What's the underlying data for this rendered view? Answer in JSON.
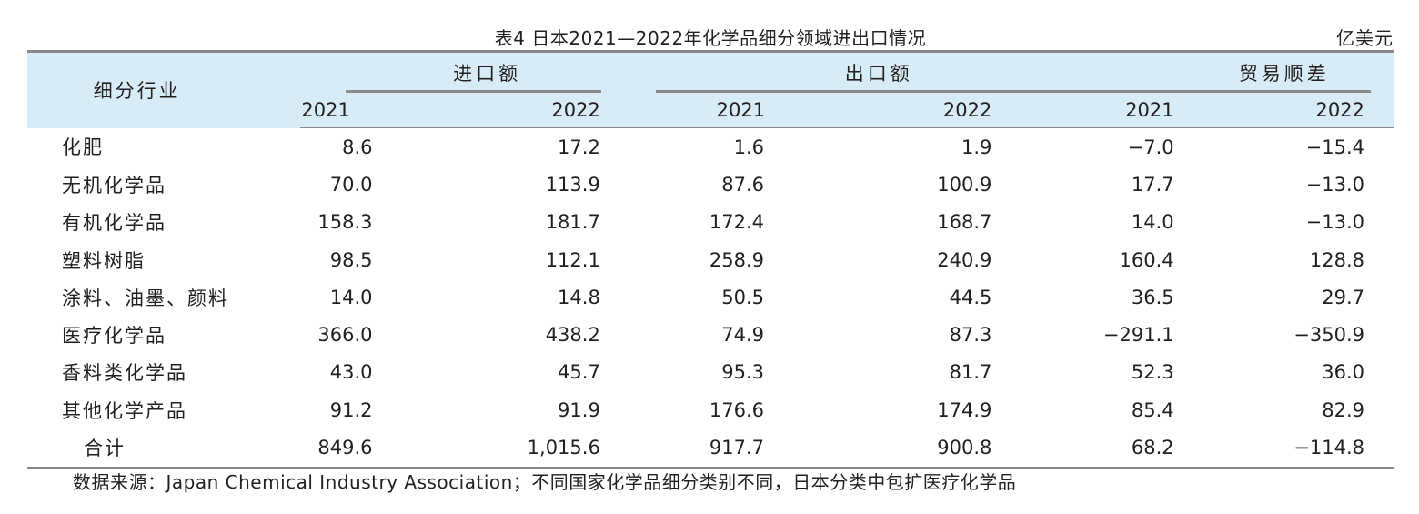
{
  "title": "表4 日本2021—2022年化学品细分领域进出口情况",
  "unit": "亿美元",
  "header": {
    "row_label": "细分行业",
    "groups": [
      "进口额",
      "出口额",
      "贸易顺差"
    ],
    "years": [
      "2021",
      "2022",
      "2021",
      "2022",
      "2021",
      "2022"
    ]
  },
  "rows": [
    {
      "name": "化肥",
      "values": [
        "8.6",
        "17.2",
        "1.6",
        "1.9",
        "−7.0",
        "−15.4"
      ]
    },
    {
      "name": "无机化学品",
      "values": [
        "70.0",
        "113.9",
        "87.6",
        "100.9",
        "17.7",
        "−13.0"
      ]
    },
    {
      "name": "有机化学品",
      "values": [
        "158.3",
        "181.7",
        "172.4",
        "168.7",
        "14.0",
        "−13.0"
      ]
    },
    {
      "name": "塑料树脂",
      "values": [
        "98.5",
        "112.1",
        "258.9",
        "240.9",
        "160.4",
        "128.8"
      ]
    },
    {
      "name": "涂料、油墨、颜料",
      "values": [
        "14.0",
        "14.8",
        "50.5",
        "44.5",
        "36.5",
        "29.7"
      ]
    },
    {
      "name": "医疗化学品",
      "values": [
        "366.0",
        "438.2",
        "74.9",
        "87.3",
        "−291.1",
        "−350.9"
      ]
    },
    {
      "name": "香料类化学品",
      "values": [
        "43.0",
        "45.7",
        "95.3",
        "81.7",
        "52.3",
        "36.0"
      ]
    },
    {
      "name": "其他化学产品",
      "values": [
        "91.2",
        "91.9",
        "176.6",
        "174.9",
        "85.4",
        "82.9"
      ]
    }
  ],
  "total": {
    "name": "合计",
    "values": [
      "849.6",
      "1,015.6",
      "917.7",
      "900.8",
      "68.2",
      "−114.8"
    ]
  },
  "footnote": "数据来源：Japan Chemical Industry Association；不同国家化学品细分类别不同，日本分类中包扩医疗化学品",
  "colors": {
    "header_bg": "#d7ecf6",
    "rule": "#888888"
  }
}
